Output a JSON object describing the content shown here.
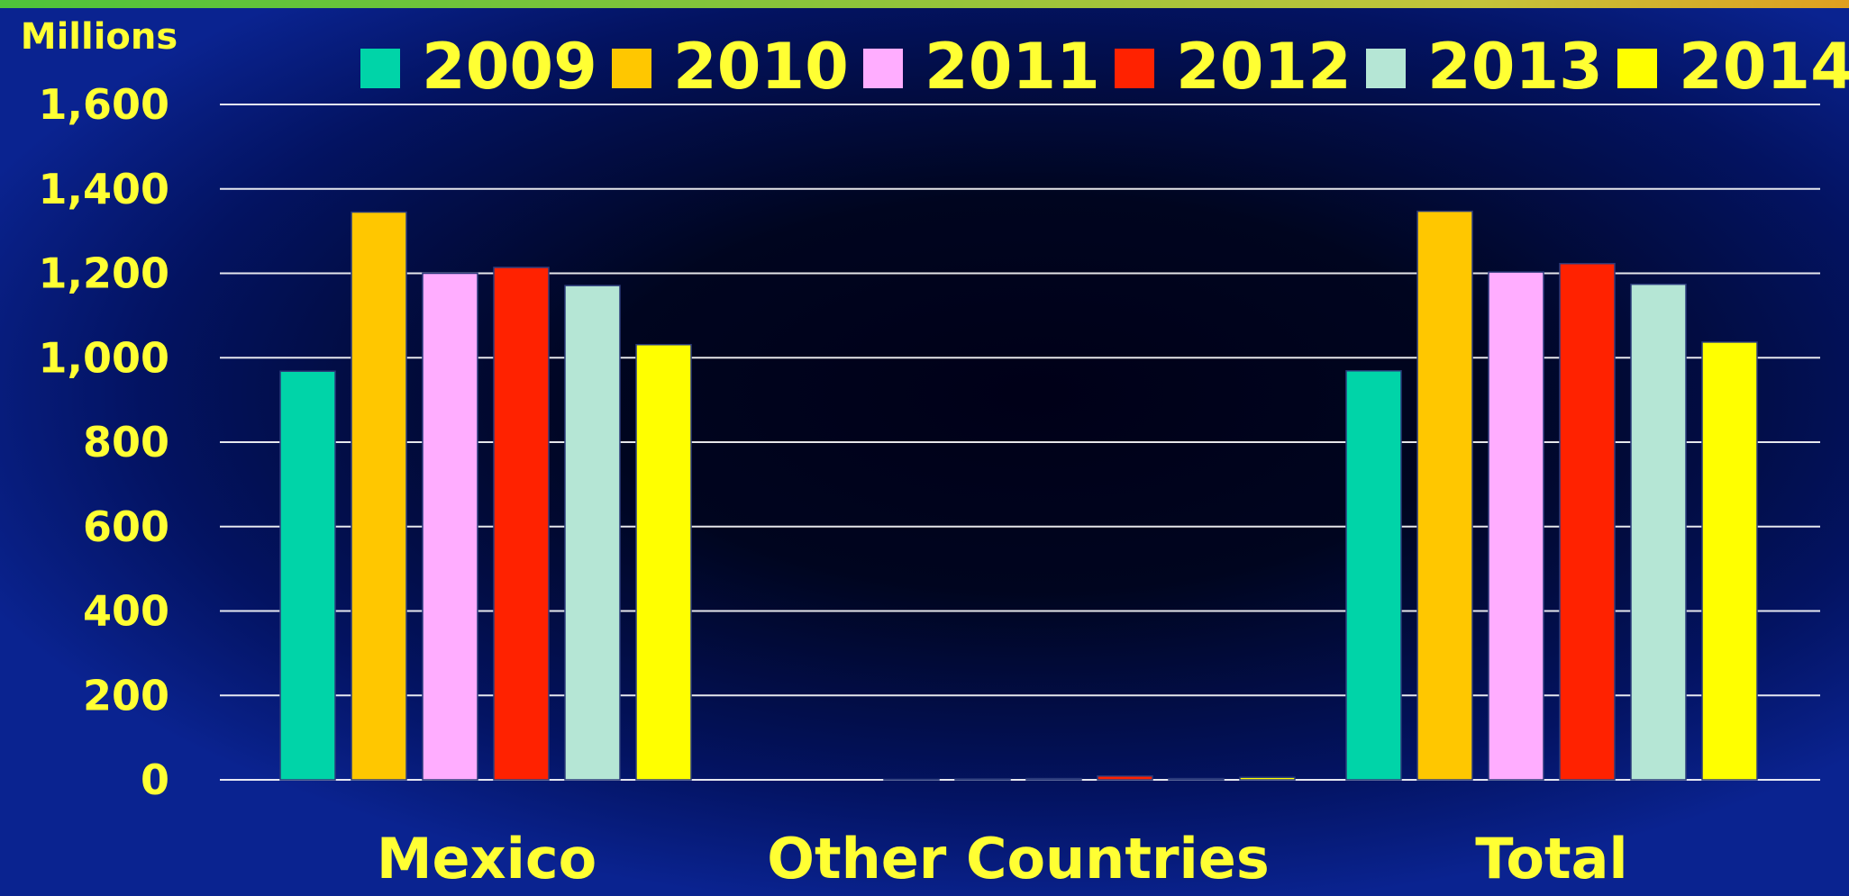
{
  "colors": {
    "axis_text": "#ffff33",
    "gridline": "#ffffff",
    "background_center": "#000018",
    "background_edge": "#0a2390"
  },
  "chart_data": {
    "type": "bar",
    "unit_label": "Millions",
    "categories": [
      "Mexico",
      "Other Countries",
      "Total"
    ],
    "series": [
      {
        "name": "2009",
        "color": "#00d4a8",
        "values": [
          968,
          0.6,
          969
        ]
      },
      {
        "name": "2010",
        "color": "#ffc700",
        "values": [
          1345,
          2,
          1347
        ]
      },
      {
        "name": "2011",
        "color": "#ffadff",
        "values": [
          1200,
          3,
          1203
        ]
      },
      {
        "name": "2012",
        "color": "#ff2200",
        "values": [
          1214,
          9,
          1223
        ]
      },
      {
        "name": "2013",
        "color": "#b5e6d5",
        "values": [
          1171,
          3,
          1174
        ]
      },
      {
        "name": "2014",
        "color": "#ffff00",
        "values": [
          1031,
          6,
          1037
        ]
      }
    ],
    "ylim": [
      0,
      1600
    ],
    "yticks": [
      0,
      200,
      400,
      600,
      800,
      1000,
      1200,
      1400,
      1600
    ],
    "ytick_labels": [
      "0",
      "200",
      "400",
      "600",
      "800",
      "1,000",
      "1,200",
      "1,400",
      "1,600"
    ],
    "grid": true,
    "legend_position": "top"
  }
}
